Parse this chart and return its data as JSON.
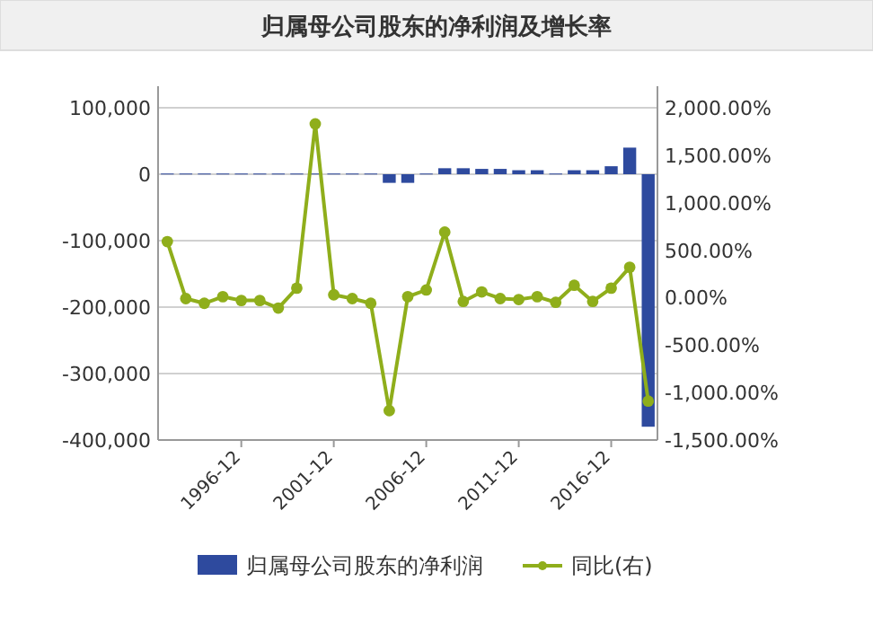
{
  "chart_data": {
    "type": "bar",
    "title": "归属母公司股东的净利润及增长率",
    "categories": [
      null,
      null,
      null,
      null,
      "1996-12",
      null,
      null,
      null,
      null,
      "2001-12",
      null,
      null,
      null,
      null,
      "2006-12",
      null,
      null,
      null,
      null,
      "2011-12",
      null,
      null,
      null,
      null,
      "2016-12",
      null,
      null
    ],
    "series": [
      {
        "name": "归属母公司股东的净利润",
        "color": "#2e4a9e",
        "values": [
          1000,
          1000,
          1000,
          1000,
          1000,
          1000,
          1000,
          1000,
          1000,
          1000,
          1000,
          1000,
          -13000,
          -13000,
          1000,
          9000,
          9000,
          8000,
          8000,
          6000,
          6000,
          1000,
          6000,
          6000,
          12000,
          40000,
          -380000
        ]
      },
      {
        "name": "同比(右)",
        "type": "line",
        "axis": "y2",
        "color": "#8fae1b",
        "marker": "circle",
        "values": [
          590,
          -10,
          -60,
          10,
          -30,
          -30,
          -110,
          100,
          1830,
          30,
          -10,
          -60,
          -1190,
          10,
          80,
          690,
          -40,
          60,
          -10,
          -20,
          10,
          -50,
          130,
          -40,
          100,
          320,
          -1090
        ]
      }
    ],
    "ylim": [
      -400000,
      100000
    ],
    "yticks": [
      {
        "value": -400000,
        "label": "-400,000"
      },
      {
        "value": -300000,
        "label": "-300,000"
      },
      {
        "value": -200000,
        "label": "-200,000"
      },
      {
        "value": -100000,
        "label": "-100,000"
      },
      {
        "value": 0,
        "label": "0"
      },
      {
        "value": 100000,
        "label": "100,000"
      }
    ],
    "y2lim": [
      -1500,
      2000
    ],
    "y2ticks": [
      {
        "value": -1500,
        "label": "-1,500.00%"
      },
      {
        "value": -1000,
        "label": "-1,000.00%"
      },
      {
        "value": -500,
        "label": "-500.00%"
      },
      {
        "value": 0,
        "label": "0.00%"
      },
      {
        "value": 500,
        "label": "500.00%"
      },
      {
        "value": 1000,
        "label": "1,000.00%"
      },
      {
        "value": 1500,
        "label": "1,500.00%"
      },
      {
        "value": 2000,
        "label": "2,000.00%"
      }
    ],
    "grid": "y",
    "legend": "bottom"
  }
}
